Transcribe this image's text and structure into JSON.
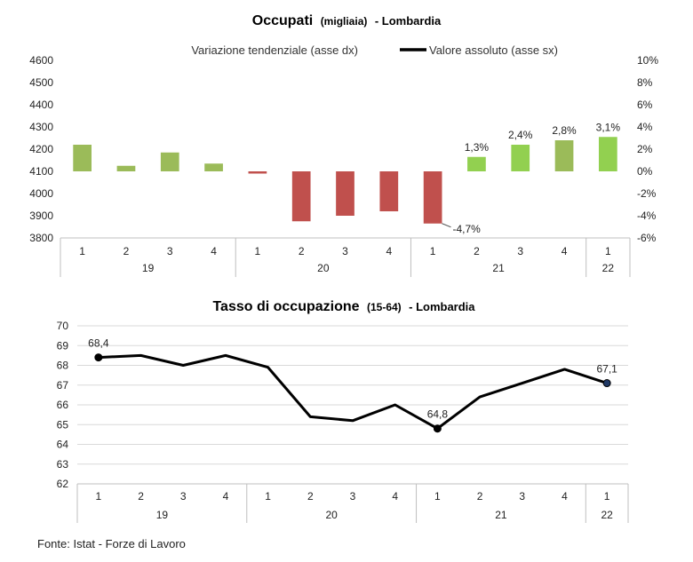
{
  "source": "Fonte: Istat - Forze di Lavoro",
  "colors": {
    "bar_green_dark": "#9bbb59",
    "bar_green_light": "#92d050",
    "bar_red": "#c0504d",
    "line": "#000000",
    "grid": "#d9d9d9"
  },
  "chart_data": [
    {
      "type": "bar",
      "title_main": "Occupati",
      "title_unit": "(migliaia)",
      "title_region": "- Lombardia",
      "legend": {
        "bar_label": "Variazione tendenziale (asse dx)",
        "line_label": "Valore assoluto (asse sx)",
        "placement": "top"
      },
      "quarters": [
        "1",
        "2",
        "3",
        "4",
        "1",
        "2",
        "3",
        "4",
        "1",
        "2",
        "3",
        "4",
        "1"
      ],
      "year_groups": [
        {
          "label": "19",
          "span": 4
        },
        {
          "label": "20",
          "span": 4
        },
        {
          "label": "21",
          "span": 4
        },
        {
          "label": "22",
          "span": 1
        }
      ],
      "values_pct": [
        2.4,
        0.5,
        1.7,
        0.7,
        -0.2,
        -4.5,
        -4.0,
        -3.6,
        -4.7,
        1.3,
        2.4,
        2.8,
        3.1
      ],
      "bar_colors": [
        "#9bbb59",
        "#9bbb59",
        "#9bbb59",
        "#9bbb59",
        "#c0504d",
        "#c0504d",
        "#c0504d",
        "#c0504d",
        "#c0504d",
        "#92d050",
        "#92d050",
        "#9bbb59",
        "#92d050"
      ],
      "data_labels": [
        "",
        "",
        "",
        "",
        "",
        "",
        "",
        "",
        "-4,7%",
        "1,3%",
        "2,4%",
        "2,8%",
        "3,1%"
      ],
      "left_axis": {
        "min": 3800,
        "max": 4600,
        "ticks": [
          "3800",
          "3900",
          "4000",
          "4100",
          "4200",
          "4300",
          "4400",
          "4500",
          "4600"
        ]
      },
      "right_axis": {
        "min": -6,
        "max": 10,
        "ticks": [
          "-6%",
          "-4%",
          "-2%",
          "0%",
          "2%",
          "4%",
          "6%",
          "8%",
          "10%"
        ]
      },
      "grid": false
    },
    {
      "type": "line",
      "title_main": "Tasso di occupazione",
      "title_unit": "(15-64)",
      "title_region": "- Lombardia",
      "quarters": [
        "1",
        "2",
        "3",
        "4",
        "1",
        "2",
        "3",
        "4",
        "1",
        "2",
        "3",
        "4",
        "1"
      ],
      "year_groups": [
        {
          "label": "19",
          "span": 4
        },
        {
          "label": "20",
          "span": 4
        },
        {
          "label": "21",
          "span": 4
        },
        {
          "label": "22",
          "span": 1
        }
      ],
      "values": [
        68.4,
        68.5,
        68.0,
        68.5,
        67.9,
        65.4,
        65.2,
        66.0,
        64.8,
        66.4,
        67.1,
        67.8,
        67.1
      ],
      "data_labels": [
        "68,4",
        "",
        "",
        "",
        "",
        "",
        "",
        "",
        "64,8",
        "",
        "",
        "",
        "67,1"
      ],
      "marker_indices": [
        0,
        8,
        12
      ],
      "y_axis": {
        "min": 62,
        "max": 70,
        "ticks": [
          "62",
          "63",
          "64",
          "65",
          "66",
          "67",
          "68",
          "69",
          "70"
        ]
      },
      "grid": true
    }
  ]
}
